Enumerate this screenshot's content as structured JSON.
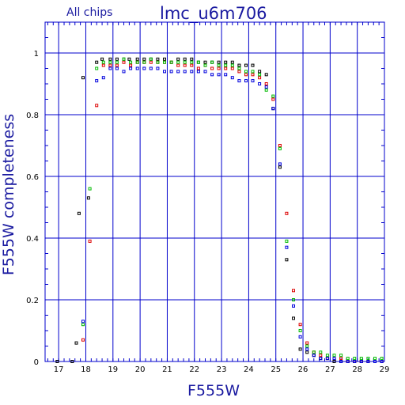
{
  "chart_data": {
    "type": "scatter",
    "title": "lmc_u6m706",
    "subtitle": "All chips",
    "xlabel": "F555W",
    "ylabel": "F555W completeness",
    "xlim": [
      16.5,
      29
    ],
    "ylim": [
      0,
      1.1
    ],
    "x_ticks": [
      17,
      18,
      19,
      20,
      21,
      22,
      23,
      24,
      25,
      26,
      27,
      28,
      29
    ],
    "y_ticks": [
      0,
      0.2,
      0.4,
      0.6,
      0.8,
      1
    ],
    "y_tick_labels": [
      "0",
      "0.2",
      "0.4",
      "0.6",
      "0.8",
      "1"
    ],
    "grid": true,
    "colors": {
      "axes": "#0000cc",
      "grid": "#0000cc",
      "text": "#1a1aa0",
      "series": [
        "#000000",
        "#dd0000",
        "#00bb00",
        "#0000dd"
      ]
    },
    "series": [
      {
        "color": "#000000",
        "x": [
          16.95,
          17.5,
          17.65,
          17.75,
          17.9,
          18.1,
          18.4,
          18.6,
          18.9,
          19.15,
          19.4,
          19.6,
          19.9,
          20.15,
          20.4,
          20.65,
          20.9,
          21.15,
          21.4,
          21.65,
          21.9,
          22.15,
          22.4,
          22.65,
          22.9,
          23.15,
          23.4,
          23.65,
          23.9,
          24.15,
          24.4,
          24.65,
          24.9,
          25.15,
          25.4,
          25.65,
          25.9,
          26.15,
          26.4,
          26.65,
          26.9,
          27.15,
          27.4,
          27.65,
          27.9,
          28.15,
          28.4,
          28.65,
          28.9
        ],
        "y": [
          0.0,
          0.0,
          0.06,
          0.48,
          0.92,
          0.53,
          0.97,
          0.98,
          0.98,
          0.98,
          0.98,
          0.98,
          0.98,
          0.98,
          0.98,
          0.98,
          0.98,
          0.97,
          0.98,
          0.98,
          0.98,
          0.97,
          0.97,
          0.97,
          0.97,
          0.97,
          0.97,
          0.96,
          0.96,
          0.96,
          0.94,
          0.93,
          0.82,
          0.63,
          0.33,
          0.14,
          0.04,
          0.03,
          0.02,
          0.01,
          0.01,
          0.0,
          0.0,
          0.0,
          0.0,
          0.0,
          0.0,
          0.0,
          0.0
        ]
      },
      {
        "color": "#dd0000",
        "x": [
          17.9,
          18.15,
          18.4,
          18.65,
          18.9,
          19.15,
          19.4,
          19.65,
          19.9,
          20.15,
          20.4,
          20.65,
          20.9,
          21.15,
          21.4,
          21.65,
          21.9,
          22.15,
          22.4,
          22.65,
          22.9,
          23.15,
          23.4,
          23.65,
          23.9,
          24.15,
          24.4,
          24.65,
          24.9,
          25.15,
          25.4,
          25.65,
          25.9,
          26.15,
          26.4,
          26.65,
          26.9,
          27.15,
          27.4,
          27.65,
          27.9,
          28.15,
          28.4,
          28.65,
          28.9
        ],
        "y": [
          0.07,
          0.39,
          0.83,
          0.96,
          0.96,
          0.96,
          0.97,
          0.96,
          0.97,
          0.97,
          0.97,
          0.97,
          0.97,
          0.97,
          0.96,
          0.96,
          0.96,
          0.95,
          0.96,
          0.95,
          0.95,
          0.95,
          0.95,
          0.94,
          0.93,
          0.93,
          0.92,
          0.9,
          0.85,
          0.7,
          0.48,
          0.23,
          0.12,
          0.06,
          0.03,
          0.02,
          0.01,
          0.01,
          0.01,
          0.0,
          0.0,
          0.0,
          0.0,
          0.0,
          0.0
        ]
      },
      {
        "color": "#00bb00",
        "x": [
          17.9,
          18.15,
          18.4,
          18.65,
          18.9,
          19.15,
          19.4,
          19.65,
          19.9,
          20.15,
          20.4,
          20.65,
          20.9,
          21.15,
          21.4,
          21.65,
          21.9,
          22.15,
          22.4,
          22.65,
          22.9,
          23.15,
          23.4,
          23.65,
          23.9,
          24.15,
          24.4,
          24.65,
          24.9,
          25.15,
          25.4,
          25.65,
          25.9,
          26.15,
          26.4,
          26.65,
          26.9,
          27.15,
          27.4,
          27.65,
          27.9,
          28.15,
          28.4,
          28.65,
          28.9
        ],
        "y": [
          0.12,
          0.56,
          0.95,
          0.97,
          0.97,
          0.97,
          0.98,
          0.97,
          0.97,
          0.97,
          0.98,
          0.97,
          0.97,
          0.97,
          0.97,
          0.97,
          0.97,
          0.97,
          0.96,
          0.97,
          0.96,
          0.96,
          0.96,
          0.95,
          0.94,
          0.94,
          0.93,
          0.88,
          0.86,
          0.69,
          0.39,
          0.2,
          0.1,
          0.05,
          0.03,
          0.03,
          0.02,
          0.02,
          0.02,
          0.01,
          0.01,
          0.01,
          0.01,
          0.01,
          0.01
        ]
      },
      {
        "color": "#0000dd",
        "x": [
          17.9,
          18.4,
          18.65,
          18.9,
          19.15,
          19.4,
          19.65,
          19.9,
          20.15,
          20.4,
          20.65,
          20.9,
          21.15,
          21.4,
          21.65,
          21.9,
          22.15,
          22.4,
          22.65,
          22.9,
          23.15,
          23.4,
          23.65,
          23.9,
          24.15,
          24.4,
          24.65,
          24.9,
          25.15,
          25.4,
          25.65,
          25.9,
          26.15,
          26.4,
          26.65,
          26.9,
          27.15,
          27.4,
          27.65,
          27.9,
          28.15,
          28.4,
          28.65,
          28.9
        ],
        "y": [
          0.13,
          0.91,
          0.92,
          0.95,
          0.95,
          0.94,
          0.95,
          0.95,
          0.95,
          0.95,
          0.95,
          0.94,
          0.94,
          0.94,
          0.94,
          0.94,
          0.94,
          0.94,
          0.93,
          0.93,
          0.93,
          0.92,
          0.91,
          0.91,
          0.91,
          0.9,
          0.89,
          0.82,
          0.64,
          0.37,
          0.18,
          0.08,
          0.04,
          0.02,
          0.01,
          0.01,
          0.01,
          0.0,
          0.0,
          0.0,
          0.0,
          0.0,
          0.0,
          0.0
        ]
      }
    ]
  }
}
